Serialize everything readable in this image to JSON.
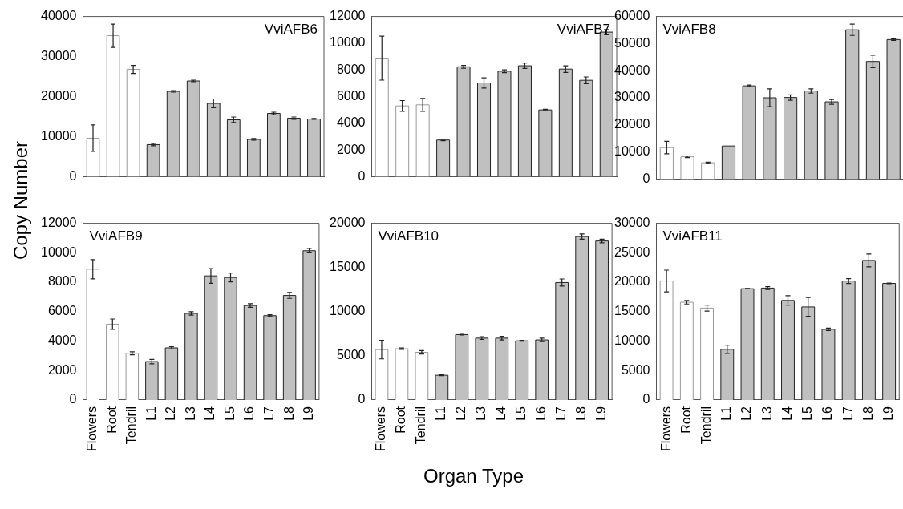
{
  "chart_data": [
    {
      "type": "bar",
      "title": "VviAFB6",
      "ylabel": "Copy Number",
      "categories": [
        null,
        null,
        null,
        null,
        null,
        null,
        null,
        null,
        null,
        null,
        null,
        null
      ],
      "values": [
        9600,
        35200,
        26800,
        8000,
        21300,
        23900,
        18300,
        14200,
        9300,
        15800,
        14600,
        14400
      ],
      "errors": [
        3300,
        2900,
        1000,
        300,
        200,
        200,
        1100,
        700,
        200,
        300,
        300,
        100
      ],
      "colors": [
        "#ffffff",
        "#ffffff",
        "#ffffff",
        "#c0c0c0",
        "#c0c0c0",
        "#c0c0c0",
        "#c0c0c0",
        "#c0c0c0",
        "#c0c0c0",
        "#c0c0c0",
        "#c0c0c0",
        "#c0c0c0"
      ],
      "ylim": [
        0,
        40000
      ],
      "yticks": [
        0,
        10000,
        20000,
        30000,
        40000
      ],
      "tick_labels": "y"
    },
    {
      "type": "bar",
      "title": "VviAFB7",
      "categories": [
        null,
        null,
        null,
        null,
        null,
        null,
        null,
        null,
        null,
        null,
        null,
        null
      ],
      "values": [
        8880,
        5300,
        5380,
        2740,
        8230,
        7020,
        7900,
        8310,
        5000,
        8060,
        7220,
        10830
      ],
      "errors": [
        1650,
        400,
        480,
        50,
        100,
        380,
        100,
        200,
        50,
        250,
        250,
        200
      ],
      "colors": [
        "#ffffff",
        "#ffffff",
        "#ffffff",
        "#c0c0c0",
        "#c0c0c0",
        "#c0c0c0",
        "#c0c0c0",
        "#c0c0c0",
        "#c0c0c0",
        "#c0c0c0",
        "#c0c0c0",
        "#c0c0c0"
      ],
      "ylim": [
        0,
        12000
      ],
      "yticks": [
        0,
        2000,
        4000,
        6000,
        8000,
        10000,
        12000
      ],
      "tick_labels": "y"
    },
    {
      "type": "bar",
      "title": "VviAFB8",
      "categories": [
        null,
        null,
        null,
        null,
        null,
        null,
        null,
        null,
        null,
        null,
        null,
        null
      ],
      "values": [
        11600,
        8200,
        6000,
        12200,
        34400,
        30000,
        30100,
        32500,
        28500,
        55100,
        43400,
        51500
      ],
      "errors": [
        2300,
        300,
        200,
        null,
        300,
        3300,
        1000,
        800,
        900,
        2100,
        2300,
        300
      ],
      "colors": [
        "#ffffff",
        "#ffffff",
        "#ffffff",
        "#c0c0c0",
        "#c0c0c0",
        "#c0c0c0",
        "#c0c0c0",
        "#c0c0c0",
        "#c0c0c0",
        "#c0c0c0",
        "#c0c0c0",
        "#c0c0c0"
      ],
      "ylim": [
        0,
        60000
      ],
      "yticks": [
        0,
        10000,
        20000,
        30000,
        40000,
        50000,
        60000
      ],
      "tick_labels": "y"
    },
    {
      "type": "bar",
      "title": "VviAFB9",
      "categories": [
        "Flowers",
        "Root",
        "Tendril",
        "L1",
        "L2",
        "L3",
        "L4",
        "L5",
        "L6",
        "L7",
        "L8",
        "L9"
      ],
      "values": [
        8880,
        5150,
        3170,
        2610,
        3540,
        5880,
        8430,
        8320,
        6420,
        5730,
        7100,
        10140
      ],
      "errors": [
        650,
        350,
        100,
        150,
        80,
        120,
        500,
        300,
        120,
        60,
        200,
        150
      ],
      "colors": [
        "#ffffff",
        "#ffffff",
        "#ffffff",
        "#c0c0c0",
        "#c0c0c0",
        "#c0c0c0",
        "#c0c0c0",
        "#c0c0c0",
        "#c0c0c0",
        "#c0c0c0",
        "#c0c0c0",
        "#c0c0c0"
      ],
      "ylim": [
        0,
        12000
      ],
      "yticks": [
        0,
        2000,
        4000,
        6000,
        8000,
        10000,
        12000
      ]
    },
    {
      "type": "bar",
      "title": "VviAFB10",
      "xlabel": "Organ Type",
      "categories": [
        "Flowers",
        "Root",
        "Tendril",
        "L1",
        "L2",
        "L3",
        "L4",
        "L5",
        "L6",
        "L7",
        "L8",
        "L9"
      ],
      "values": [
        5700,
        5800,
        5400,
        2800,
        7400,
        7000,
        7000,
        6700,
        6800,
        13300,
        18500,
        18000
      ],
      "errors": [
        1050,
        80,
        200,
        50,
        30,
        150,
        200,
        50,
        200,
        400,
        300,
        200
      ],
      "colors": [
        "#ffffff",
        "#ffffff",
        "#ffffff",
        "#c0c0c0",
        "#c0c0c0",
        "#c0c0c0",
        "#c0c0c0",
        "#c0c0c0",
        "#c0c0c0",
        "#c0c0c0",
        "#c0c0c0",
        "#c0c0c0"
      ],
      "ylim": [
        0,
        20000
      ],
      "yticks": [
        0,
        5000,
        10000,
        15000,
        20000
      ]
    },
    {
      "type": "bar",
      "title": "VviAFB11",
      "categories": [
        "Flowers",
        "Root",
        "Tendril",
        "L1",
        "L2",
        "L3",
        "L4",
        "L5",
        "L6",
        "L7",
        "L8",
        "L9"
      ],
      "values": [
        20200,
        16600,
        15600,
        8600,
        18900,
        19000,
        16900,
        15800,
        12000,
        20200,
        23700,
        19800
      ],
      "errors": [
        1850,
        300,
        500,
        700,
        50,
        250,
        800,
        1600,
        200,
        400,
        1100,
        50
      ],
      "colors": [
        "#ffffff",
        "#ffffff",
        "#ffffff",
        "#c0c0c0",
        "#c0c0c0",
        "#c0c0c0",
        "#c0c0c0",
        "#c0c0c0",
        "#c0c0c0",
        "#c0c0c0",
        "#c0c0c0",
        "#c0c0c0"
      ],
      "ylim": [
        0,
        30000
      ],
      "yticks": [
        0,
        5000,
        10000,
        15000,
        20000,
        25000,
        30000
      ]
    }
  ]
}
